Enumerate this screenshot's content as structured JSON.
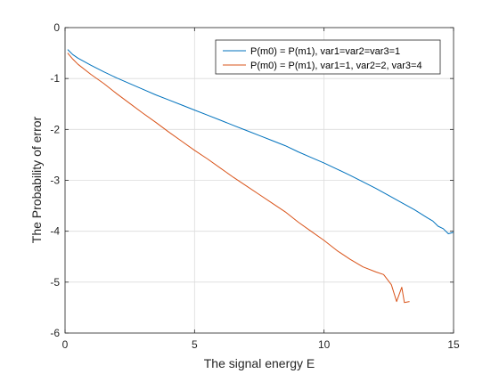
{
  "chart_data": {
    "type": "line",
    "title": "",
    "xlabel": "The signal energy E",
    "ylabel": "The Probability of error",
    "xlim": [
      0,
      15
    ],
    "ylim": [
      -6,
      0
    ],
    "xticks": [
      0,
      5,
      10,
      15
    ],
    "xtick_labels": [
      "0",
      "5",
      "10",
      "15"
    ],
    "yticks": [
      0,
      -1,
      -2,
      -3,
      -4,
      -5,
      -6
    ],
    "ytick_labels": [
      "0",
      "-1",
      "-2",
      "-3",
      "-4",
      "-5",
      "-6"
    ],
    "grid": true,
    "legend_position": "top-right",
    "series": [
      {
        "name": "P(m0) = P(m1), var1=var2=var3=1",
        "color": "#0072BD",
        "x": [
          0.1,
          0.3,
          0.5,
          1,
          1.5,
          2,
          2.5,
          3,
          3.5,
          4,
          4.5,
          5,
          5.5,
          6,
          6.5,
          7,
          7.5,
          8,
          8.5,
          9,
          9.5,
          10,
          10.5,
          11,
          11.5,
          12,
          12.5,
          13,
          13.5,
          14,
          14.2,
          14.4,
          14.6,
          14.8,
          15
        ],
        "y": [
          -0.43,
          -0.53,
          -0.6,
          -0.74,
          -0.87,
          -0.99,
          -1.1,
          -1.21,
          -1.32,
          -1.42,
          -1.52,
          -1.62,
          -1.72,
          -1.82,
          -1.92,
          -2.02,
          -2.12,
          -2.22,
          -2.32,
          -2.44,
          -2.55,
          -2.66,
          -2.78,
          -2.9,
          -3.03,
          -3.16,
          -3.3,
          -3.44,
          -3.58,
          -3.74,
          -3.8,
          -3.9,
          -3.95,
          -4.05,
          -4.02
        ]
      },
      {
        "name": "P(m0) = P(m1), var1=1, var2=2, var3=4",
        "color": "#D95319",
        "x": [
          0.1,
          0.3,
          0.5,
          1,
          1.5,
          2,
          2.5,
          3,
          3.5,
          4,
          4.5,
          5,
          5.5,
          6,
          6.5,
          7,
          7.5,
          8,
          8.5,
          9,
          9.5,
          10,
          10.5,
          11,
          11.5,
          12,
          12.3,
          12.6,
          12.8,
          13,
          13.1,
          13.3
        ],
        "y": [
          -0.5,
          -0.62,
          -0.72,
          -0.92,
          -1.1,
          -1.3,
          -1.49,
          -1.68,
          -1.86,
          -2.05,
          -2.23,
          -2.41,
          -2.58,
          -2.76,
          -2.94,
          -3.11,
          -3.28,
          -3.45,
          -3.62,
          -3.82,
          -4.0,
          -4.18,
          -4.38,
          -4.55,
          -4.7,
          -4.8,
          -4.85,
          -5.05,
          -5.38,
          -5.1,
          -5.4,
          -5.38
        ]
      }
    ]
  }
}
